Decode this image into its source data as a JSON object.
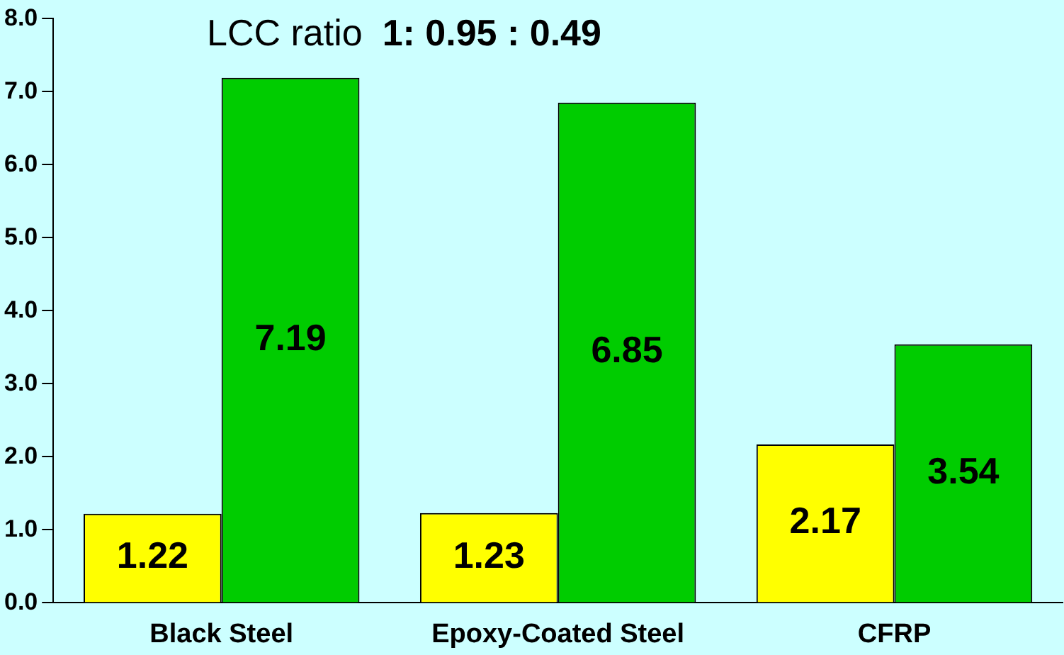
{
  "chart_data": {
    "type": "bar",
    "title": "LCC ratio",
    "annotations": [
      "1: 0.95 : 0.49"
    ],
    "categories": [
      "Black Steel",
      "Epoxy-Coated Steel",
      "CFRP"
    ],
    "series": [
      {
        "color": "#ffff00",
        "values": [
          1.22,
          1.23,
          2.17
        ]
      },
      {
        "color": "#00cc00",
        "values": [
          7.19,
          6.85,
          3.54
        ]
      }
    ],
    "ylim": [
      0,
      8
    ],
    "yticks": [
      {
        "value": 0,
        "label": "0.0"
      },
      {
        "value": 1,
        "label": "1.0"
      },
      {
        "value": 2,
        "label": "2.0"
      },
      {
        "value": 3,
        "label": "3.0"
      },
      {
        "value": 4,
        "label": "4.0"
      },
      {
        "value": 5,
        "label": "5.0"
      },
      {
        "value": 6,
        "label": "6.0"
      },
      {
        "value": 7,
        "label": "7.0"
      },
      {
        "value": 8,
        "label": "8.0"
      }
    ],
    "grid": false,
    "legend": false,
    "data_labels": true
  }
}
